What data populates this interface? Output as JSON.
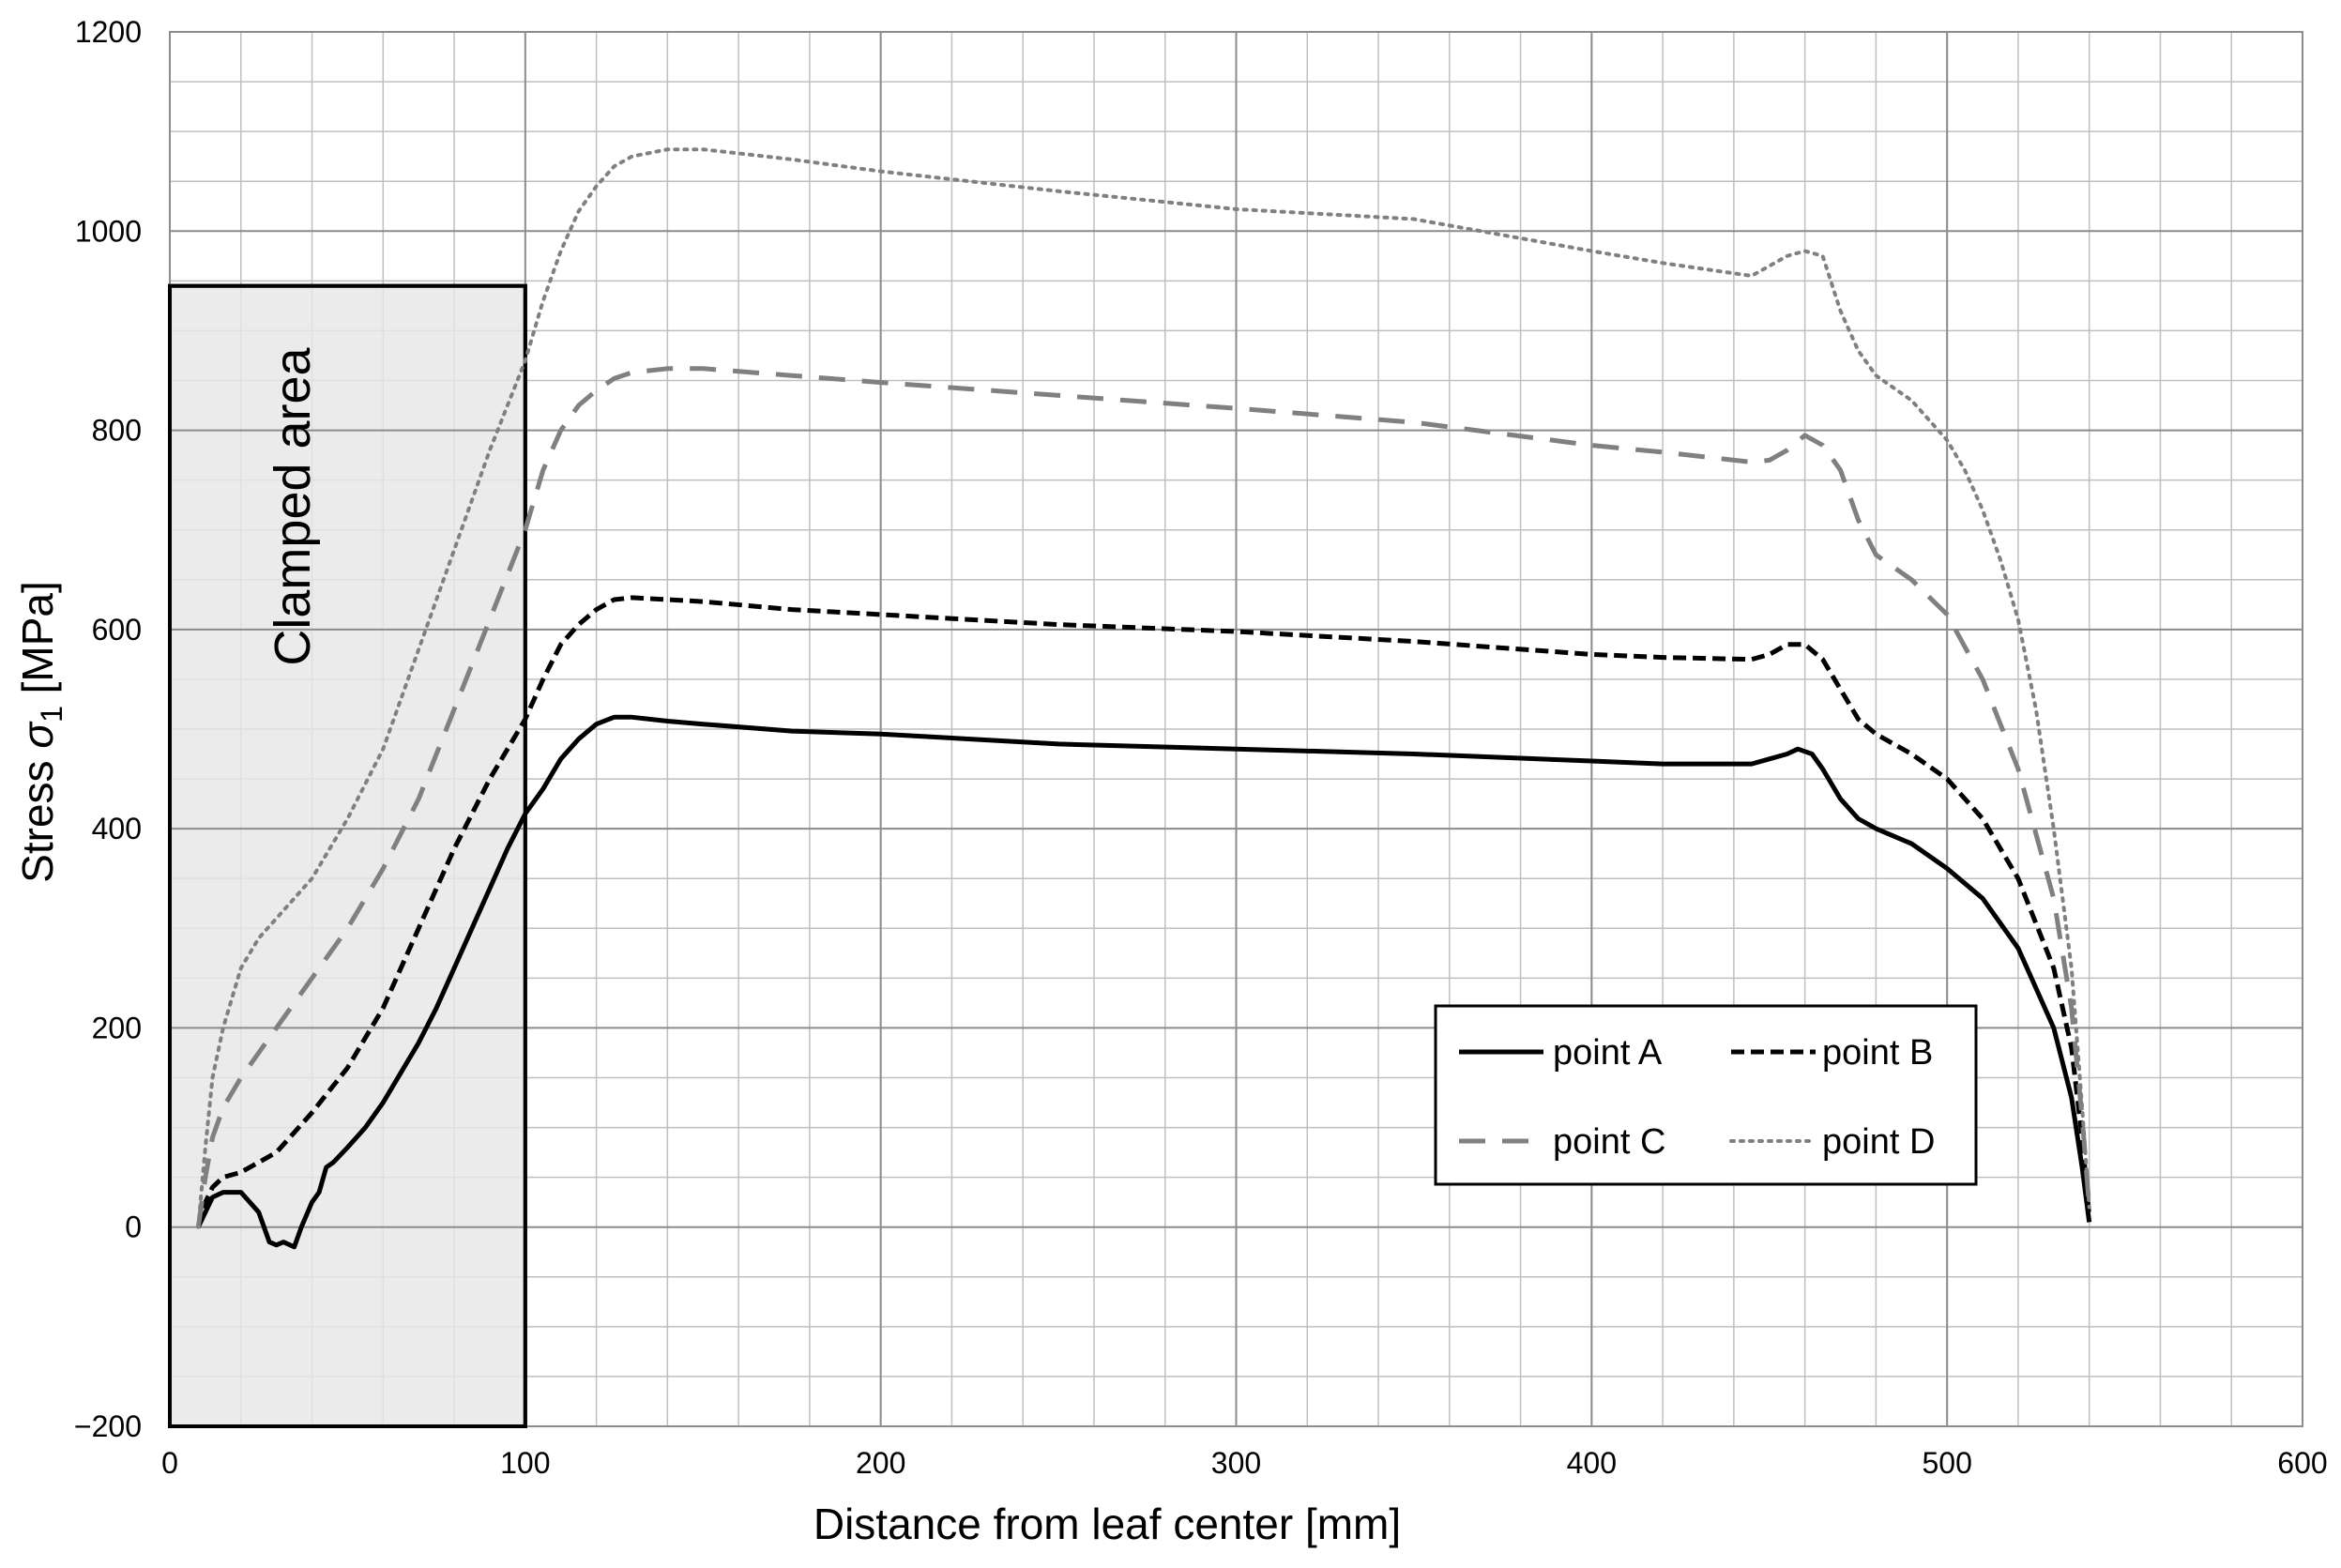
{
  "chart_data": {
    "type": "line",
    "xlabel": "Distance from leaf center [mm]",
    "ylabel_prefix": "Stress ",
    "ylabel_symbol": "σ",
    "ylabel_sub": "1",
    "ylabel_suffix": " [MPa]",
    "xlim": [
      0,
      600
    ],
    "ylim": [
      -200,
      1200
    ],
    "x_ticks": [
      0,
      100,
      200,
      300,
      400,
      500,
      600
    ],
    "y_ticks": [
      -200,
      0,
      200,
      400,
      600,
      800,
      1000,
      1200
    ],
    "x_tick_labels": [
      "0",
      "100",
      "200",
      "300",
      "400",
      "500",
      "600"
    ],
    "y_tick_labels": [
      "−200",
      "0",
      "200",
      "400",
      "600",
      "800",
      "1000",
      "1200"
    ],
    "grid": true,
    "minor_x_step": 20,
    "minor_y_step": 50,
    "legend_position": "bottom-right",
    "annotation": {
      "text": "Clamped area",
      "x_range": [
        0,
        100
      ],
      "y_range": [
        -200,
        945
      ],
      "fill": "#e6e6e6"
    },
    "series": [
      {
        "name": "point A",
        "color": "#000000",
        "style": "solid",
        "x": [
          8,
          10,
          12,
          15,
          20,
          25,
          28,
          30,
          32,
          35,
          37,
          40,
          42,
          44,
          46,
          50,
          55,
          60,
          65,
          70,
          75,
          80,
          85,
          90,
          95,
          100,
          105,
          110,
          115,
          120,
          125,
          130,
          140,
          150,
          175,
          200,
          250,
          300,
          350,
          400,
          420,
          445,
          450,
          455,
          458,
          462,
          465,
          470,
          475,
          480,
          490,
          500,
          510,
          520,
          530,
          535,
          538,
          540
        ],
        "y": [
          0,
          15,
          30,
          35,
          35,
          15,
          -15,
          -18,
          -15,
          -20,
          0,
          25,
          35,
          60,
          65,
          80,
          100,
          125,
          155,
          185,
          220,
          260,
          300,
          340,
          380,
          415,
          440,
          470,
          490,
          505,
          512,
          512,
          508,
          505,
          498,
          495,
          485,
          480,
          475,
          468,
          465,
          465,
          470,
          475,
          480,
          475,
          460,
          430,
          410,
          400,
          385,
          360,
          330,
          280,
          200,
          130,
          60,
          5
        ]
      },
      {
        "name": "point B",
        "color": "#000000",
        "style": "dash",
        "x": [
          8,
          10,
          12,
          15,
          20,
          25,
          30,
          35,
          40,
          50,
          60,
          70,
          80,
          90,
          100,
          105,
          110,
          115,
          120,
          125,
          130,
          140,
          150,
          175,
          200,
          250,
          300,
          350,
          400,
          420,
          445,
          450,
          455,
          460,
          465,
          470,
          475,
          480,
          490,
          500,
          510,
          520,
          530,
          535,
          538,
          540
        ],
        "y": [
          0,
          25,
          40,
          50,
          55,
          65,
          75,
          95,
          115,
          160,
          220,
          300,
          380,
          450,
          510,
          550,
          585,
          605,
          620,
          630,
          632,
          630,
          628,
          620,
          615,
          605,
          598,
          588,
          575,
          572,
          570,
          575,
          585,
          585,
          570,
          540,
          510,
          495,
          475,
          450,
          410,
          350,
          260,
          180,
          90,
          10
        ]
      },
      {
        "name": "point C",
        "color": "#808080",
        "style": "longdash",
        "x": [
          8,
          10,
          12,
          15,
          20,
          30,
          40,
          50,
          60,
          70,
          80,
          90,
          100,
          105,
          110,
          115,
          120,
          125,
          130,
          140,
          150,
          175,
          200,
          250,
          300,
          350,
          400,
          420,
          445,
          450,
          455,
          460,
          465,
          470,
          475,
          480,
          490,
          500,
          510,
          520,
          530,
          535,
          538,
          540
        ],
        "y": [
          0,
          50,
          90,
          120,
          150,
          200,
          250,
          300,
          360,
          430,
          520,
          610,
          700,
          760,
          800,
          825,
          840,
          852,
          858,
          862,
          862,
          855,
          848,
          835,
          822,
          808,
          785,
          778,
          768,
          770,
          780,
          795,
          785,
          760,
          710,
          675,
          650,
          615,
          550,
          460,
          330,
          220,
          110,
          20
        ]
      },
      {
        "name": "point D",
        "color": "#808080",
        "style": "dot",
        "x": [
          8,
          10,
          12,
          15,
          20,
          25,
          30,
          40,
          50,
          60,
          70,
          80,
          90,
          100,
          105,
          110,
          115,
          120,
          125,
          130,
          140,
          150,
          175,
          200,
          250,
          300,
          350,
          400,
          420,
          445,
          450,
          455,
          460,
          465,
          470,
          475,
          480,
          490,
          500,
          505,
          510,
          515,
          520,
          525,
          530,
          535,
          538,
          540
        ],
        "y": [
          0,
          80,
          150,
          200,
          260,
          290,
          310,
          350,
          410,
          480,
          580,
          680,
          780,
          870,
          930,
          980,
          1020,
          1045,
          1065,
          1075,
          1082,
          1082,
          1072,
          1060,
          1040,
          1022,
          1012,
          980,
          968,
          955,
          965,
          975,
          980,
          975,
          920,
          880,
          855,
          830,
          790,
          760,
          720,
          670,
          610,
          520,
          400,
          260,
          120,
          20
        ]
      }
    ]
  }
}
